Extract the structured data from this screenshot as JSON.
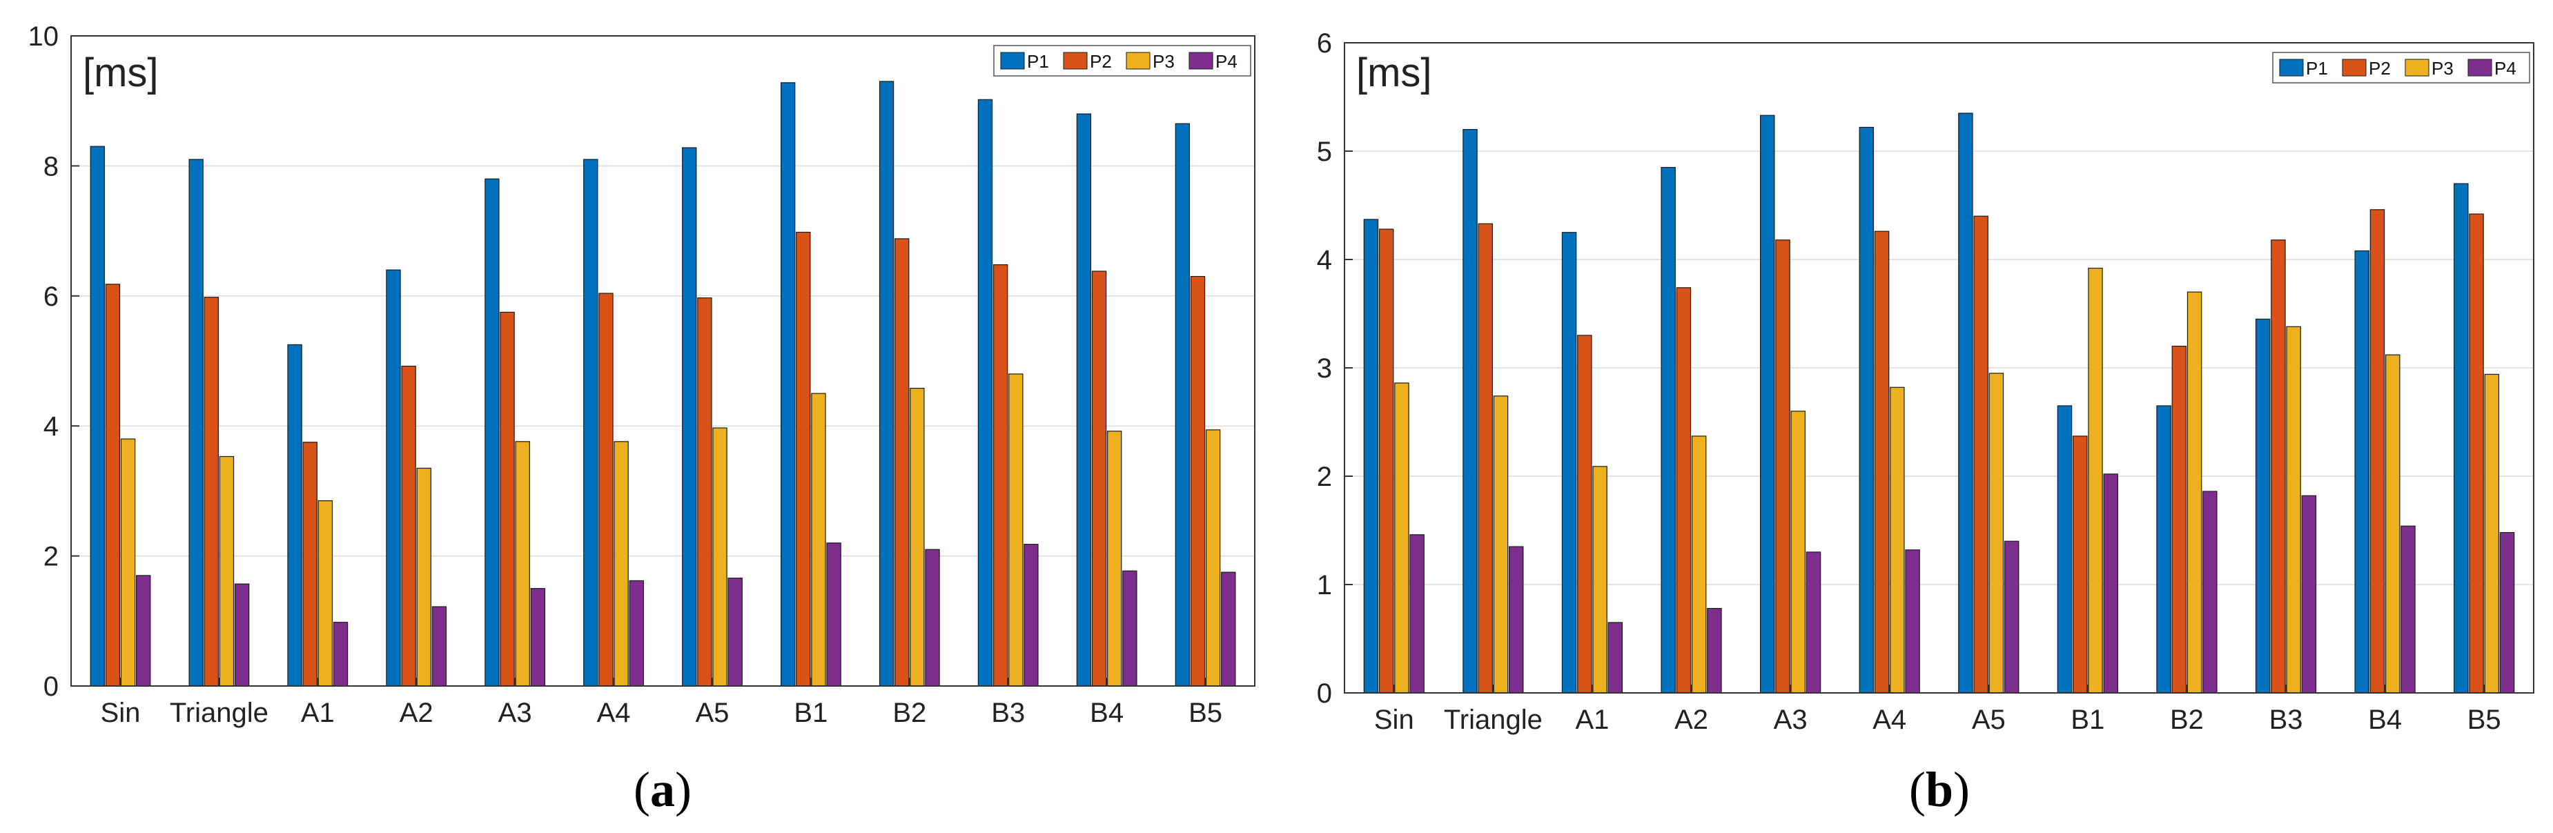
{
  "colors": {
    "P1": "#0072BD",
    "P2": "#D95319",
    "P3": "#EDB120",
    "P4": "#7E2F8E",
    "grid": "#dcdcdc",
    "axis": "#333333"
  },
  "chart_data": [
    {
      "type": "bar",
      "panel": "a",
      "panel_label": "a",
      "unit_label": "[ms]",
      "title": "",
      "xlabel": "",
      "ylabel": "",
      "ylim": [
        0,
        10
      ],
      "yticks": [
        0,
        2,
        4,
        6,
        8,
        10
      ],
      "grid": true,
      "legend_position": "top-right",
      "categories": [
        "Sin",
        "Triangle",
        "A1",
        "A2",
        "A3",
        "A4",
        "A5",
        "B1",
        "B2",
        "B3",
        "B4",
        "B5"
      ],
      "series": [
        {
          "name": "P1",
          "values": [
            8.3,
            8.1,
            5.25,
            6.4,
            7.8,
            8.1,
            8.28,
            9.28,
            9.3,
            9.02,
            8.8,
            8.65
          ]
        },
        {
          "name": "P2",
          "values": [
            6.18,
            5.98,
            3.75,
            4.92,
            5.75,
            6.04,
            5.97,
            6.98,
            6.88,
            6.48,
            6.38,
            6.3
          ]
        },
        {
          "name": "P3",
          "values": [
            3.8,
            3.53,
            2.85,
            3.35,
            3.76,
            3.76,
            3.97,
            4.5,
            4.58,
            4.8,
            3.92,
            3.94
          ]
        },
        {
          "name": "P4",
          "values": [
            1.7,
            1.57,
            0.98,
            1.22,
            1.5,
            1.62,
            1.66,
            2.2,
            2.1,
            2.18,
            1.77,
            1.75
          ]
        }
      ]
    },
    {
      "type": "bar",
      "panel": "b",
      "panel_label": "b",
      "unit_label": "[ms]",
      "title": "",
      "xlabel": "",
      "ylabel": "",
      "ylim": [
        0,
        6
      ],
      "yticks": [
        0,
        1,
        2,
        3,
        4,
        5,
        6
      ],
      "grid": true,
      "legend_position": "top-right",
      "categories": [
        "Sin",
        "Triangle",
        "A1",
        "A2",
        "A3",
        "A4",
        "A5",
        "B1",
        "B2",
        "B3",
        "B4",
        "B5"
      ],
      "series": [
        {
          "name": "P1",
          "values": [
            4.37,
            5.2,
            4.25,
            4.85,
            5.33,
            5.22,
            5.35,
            2.65,
            2.65,
            3.45,
            4.08,
            4.7
          ]
        },
        {
          "name": "P2",
          "values": [
            4.28,
            4.33,
            3.3,
            3.74,
            4.18,
            4.26,
            4.4,
            2.37,
            3.2,
            4.18,
            4.46,
            4.42
          ]
        },
        {
          "name": "P3",
          "values": [
            2.86,
            2.74,
            2.09,
            2.37,
            2.6,
            2.82,
            2.95,
            3.92,
            3.7,
            3.38,
            3.12,
            2.94
          ]
        },
        {
          "name": "P4",
          "values": [
            1.46,
            1.35,
            0.65,
            0.78,
            1.3,
            1.32,
            1.4,
            2.02,
            1.86,
            1.82,
            1.54,
            1.48
          ]
        }
      ]
    }
  ]
}
